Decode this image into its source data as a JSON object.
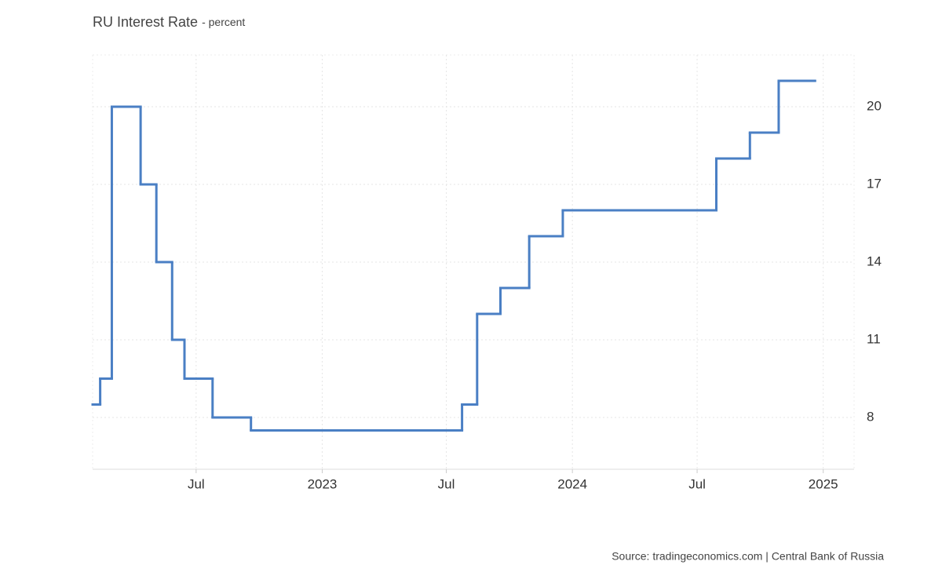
{
  "chart_data": {
    "type": "step",
    "title": "RU Interest Rate",
    "subtitle": "- percent",
    "source": "Source: tradingeconomics.com | Central Bank of Russia",
    "x": [
      "2022-01-31",
      "2022-02-11",
      "2022-02-28",
      "2022-04-11",
      "2022-05-04",
      "2022-05-27",
      "2022-06-14",
      "2022-07-25",
      "2022-09-19",
      "2023-07-24",
      "2023-08-15",
      "2023-09-18",
      "2023-10-30",
      "2023-12-18",
      "2024-07-29",
      "2024-09-16",
      "2024-10-28",
      "2024-12-20"
    ],
    "series": [
      {
        "name": "Interest Rate",
        "color": "#4a7fc4",
        "values": [
          8.5,
          9.5,
          20,
          17,
          14,
          11,
          9.5,
          8,
          7.5,
          8.5,
          12,
          13,
          15,
          16,
          18,
          19,
          21,
          21
        ]
      }
    ],
    "xlim": [
      "2022-01-31",
      "2025-02-15"
    ],
    "xticks": [
      {
        "value": "2022-07-01",
        "label": "Jul"
      },
      {
        "value": "2023-01-01",
        "label": "2023"
      },
      {
        "value": "2023-07-01",
        "label": "Jul"
      },
      {
        "value": "2024-01-01",
        "label": "2024"
      },
      {
        "value": "2024-07-01",
        "label": "Jul"
      },
      {
        "value": "2025-01-01",
        "label": "2025"
      }
    ],
    "ylim": [
      6,
      22
    ],
    "yticks": [
      8,
      11,
      14,
      17,
      20
    ],
    "grid": true
  }
}
